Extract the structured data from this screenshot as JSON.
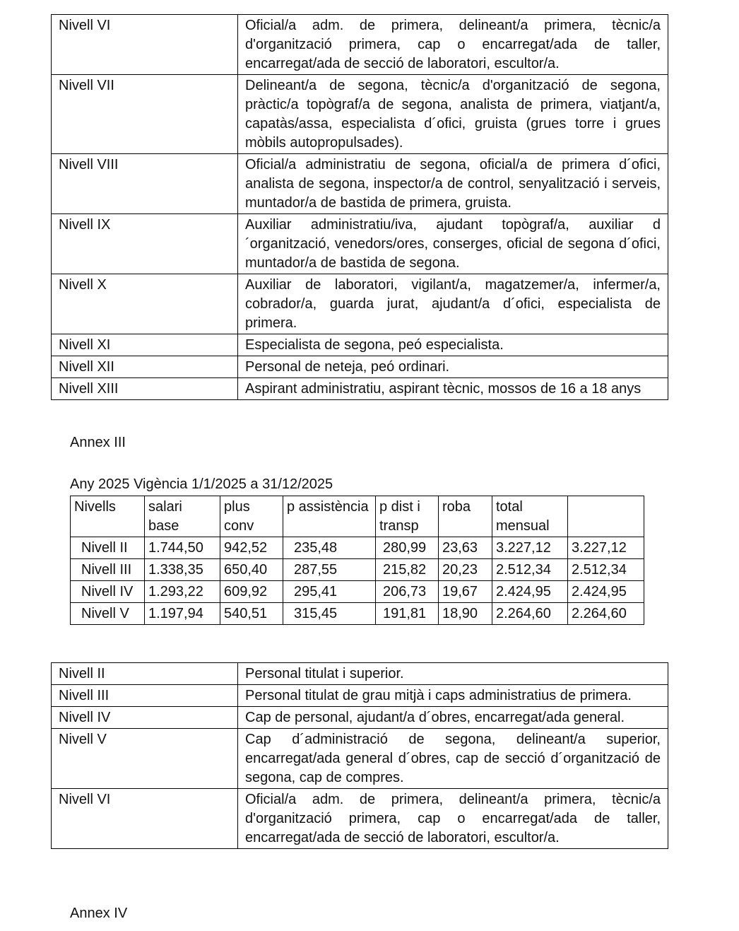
{
  "table_top": [
    {
      "level": "Nivell VI",
      "description": "Oficial/a adm. de primera, delineant/a primera, tècnic/a d'organització primera, cap o encarregat/ada de taller, encarregat/ada de secció de laboratori, escultor/a."
    },
    {
      "level": "Nivell VII",
      "description": "Delineant/a de segona, tècnic/a d'organització de segona, pràctic/a topògraf/a de segona, analista de primera, viatjant/a, capatàs/assa, especialista d´ofici, gruista (grues torre i grues mòbils autopropulsades)."
    },
    {
      "level": "Nivell VIII",
      "description": "Oficial/a administratiu de segona, oficial/a de primera d´ofici, analista de segona, inspector/a de control, senyalització i serveis, muntador/a de bastida de primera, gruista."
    },
    {
      "level": "Nivell IX",
      "description": "Auxiliar administratiu/iva, ajudant topògraf/a, auxiliar d´organització, venedors/ores, conserges, oficial de segona d´ofici, muntador/a de bastida de segona."
    },
    {
      "level": "Nivell X",
      "description": "Auxiliar de laboratori, vigilant/a, magatzemer/a, infermer/a, cobrador/a, guarda jurat, ajudant/a d´ofici, especialista de primera."
    },
    {
      "level": "Nivell XI",
      "description": "Especialista de segona, peó especialista."
    },
    {
      "level": "Nivell XII",
      "description": "Personal de neteja, peó ordinari."
    },
    {
      "level": "Nivell XIII",
      "description": "Aspirant administratiu, aspirant tècnic, mossos de 16 a 18 anys"
    }
  ],
  "annex3_title": "Annex III",
  "salary_title": "Any 2025 Vigència 1/1/2025 a 31/12/2025",
  "salary_table": {
    "headers": [
      "Nivells",
      "salari base",
      "plus conv",
      "p assistència",
      "p dist i transp",
      "roba",
      "total mensual",
      ""
    ],
    "rows": [
      [
        "Nivell II",
        "1.744,50",
        "942,52",
        "235,48",
        "280,99",
        "23,63",
        "3.227,12",
        "3.227,12"
      ],
      [
        "Nivell III",
        "1.338,35",
        "650,40",
        "287,55",
        "215,82",
        "20,23",
        "2.512,34",
        "2.512,34"
      ],
      [
        "Nivell IV",
        "1.293,22",
        "609,92",
        "295,41",
        "206,73",
        "19,67",
        "2.424,95",
        "2.424,95"
      ],
      [
        "Nivell V",
        "1.197,94",
        "540,51",
        "315,45",
        "191,81",
        "18,90",
        "2.264,60",
        "2.264,60"
      ]
    ]
  },
  "table_bottom": [
    {
      "level": "Nivell II",
      "description": "Personal titulat i superior."
    },
    {
      "level": "Nivell III",
      "description": "Personal titulat de grau mitjà i caps administratius de primera."
    },
    {
      "level": "Nivell IV",
      "description": "Cap de personal, ajudant/a d´obres, encarregat/ada general."
    },
    {
      "level": "Nivell V",
      "description": "Cap d´administració de segona, delineant/a superior, encarregat/ada general d´obres, cap de secció d´organització de segona, cap de compres."
    },
    {
      "level": "Nivell VI",
      "description": "Oficial/a adm. de primera, delineant/a primera, tècnic/a d'organització primera, cap o encarregat/ada de taller, encarregat/ada de secció de laboratori, escultor/a."
    }
  ],
  "annex4_title": "Annex IV"
}
